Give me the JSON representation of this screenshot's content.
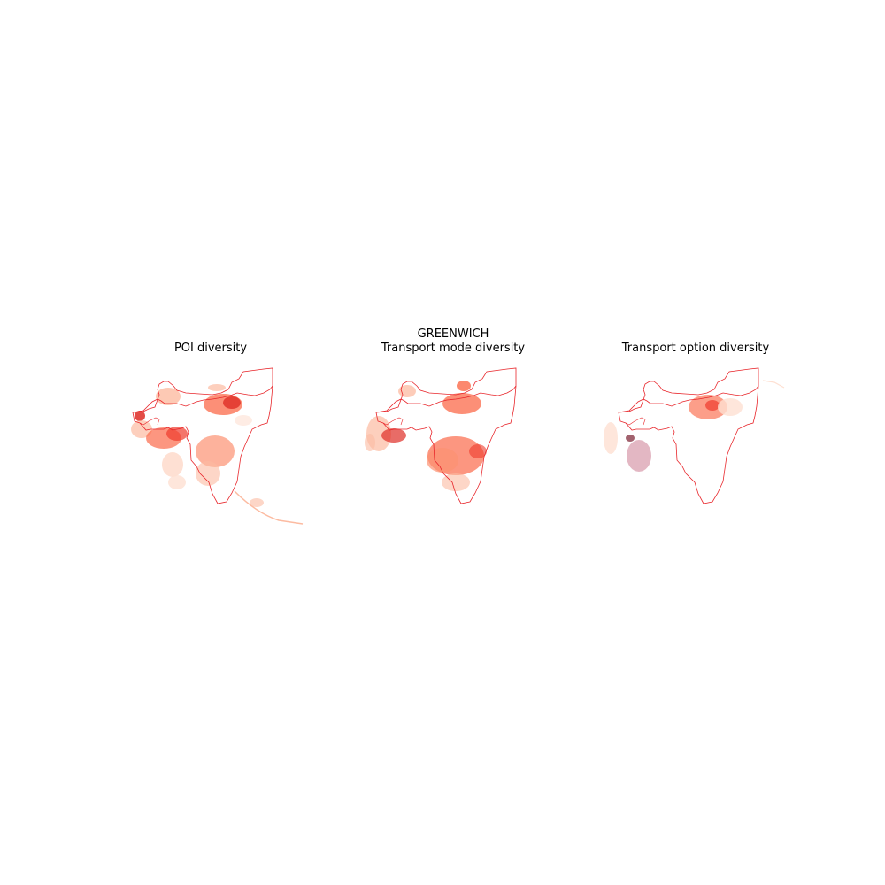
{
  "figure": {
    "suptitle": "GREENWICH",
    "panels": [
      {
        "title": "POI diversity"
      },
      {
        "title": "Transport mode diversity"
      },
      {
        "title": "Transport option diversity"
      }
    ]
  },
  "colors": {
    "boundary": "#e8262b",
    "low": "#fee0d2",
    "mid": "#fc9272",
    "high": "#de2d26",
    "purple_network": "#c0607a"
  }
}
